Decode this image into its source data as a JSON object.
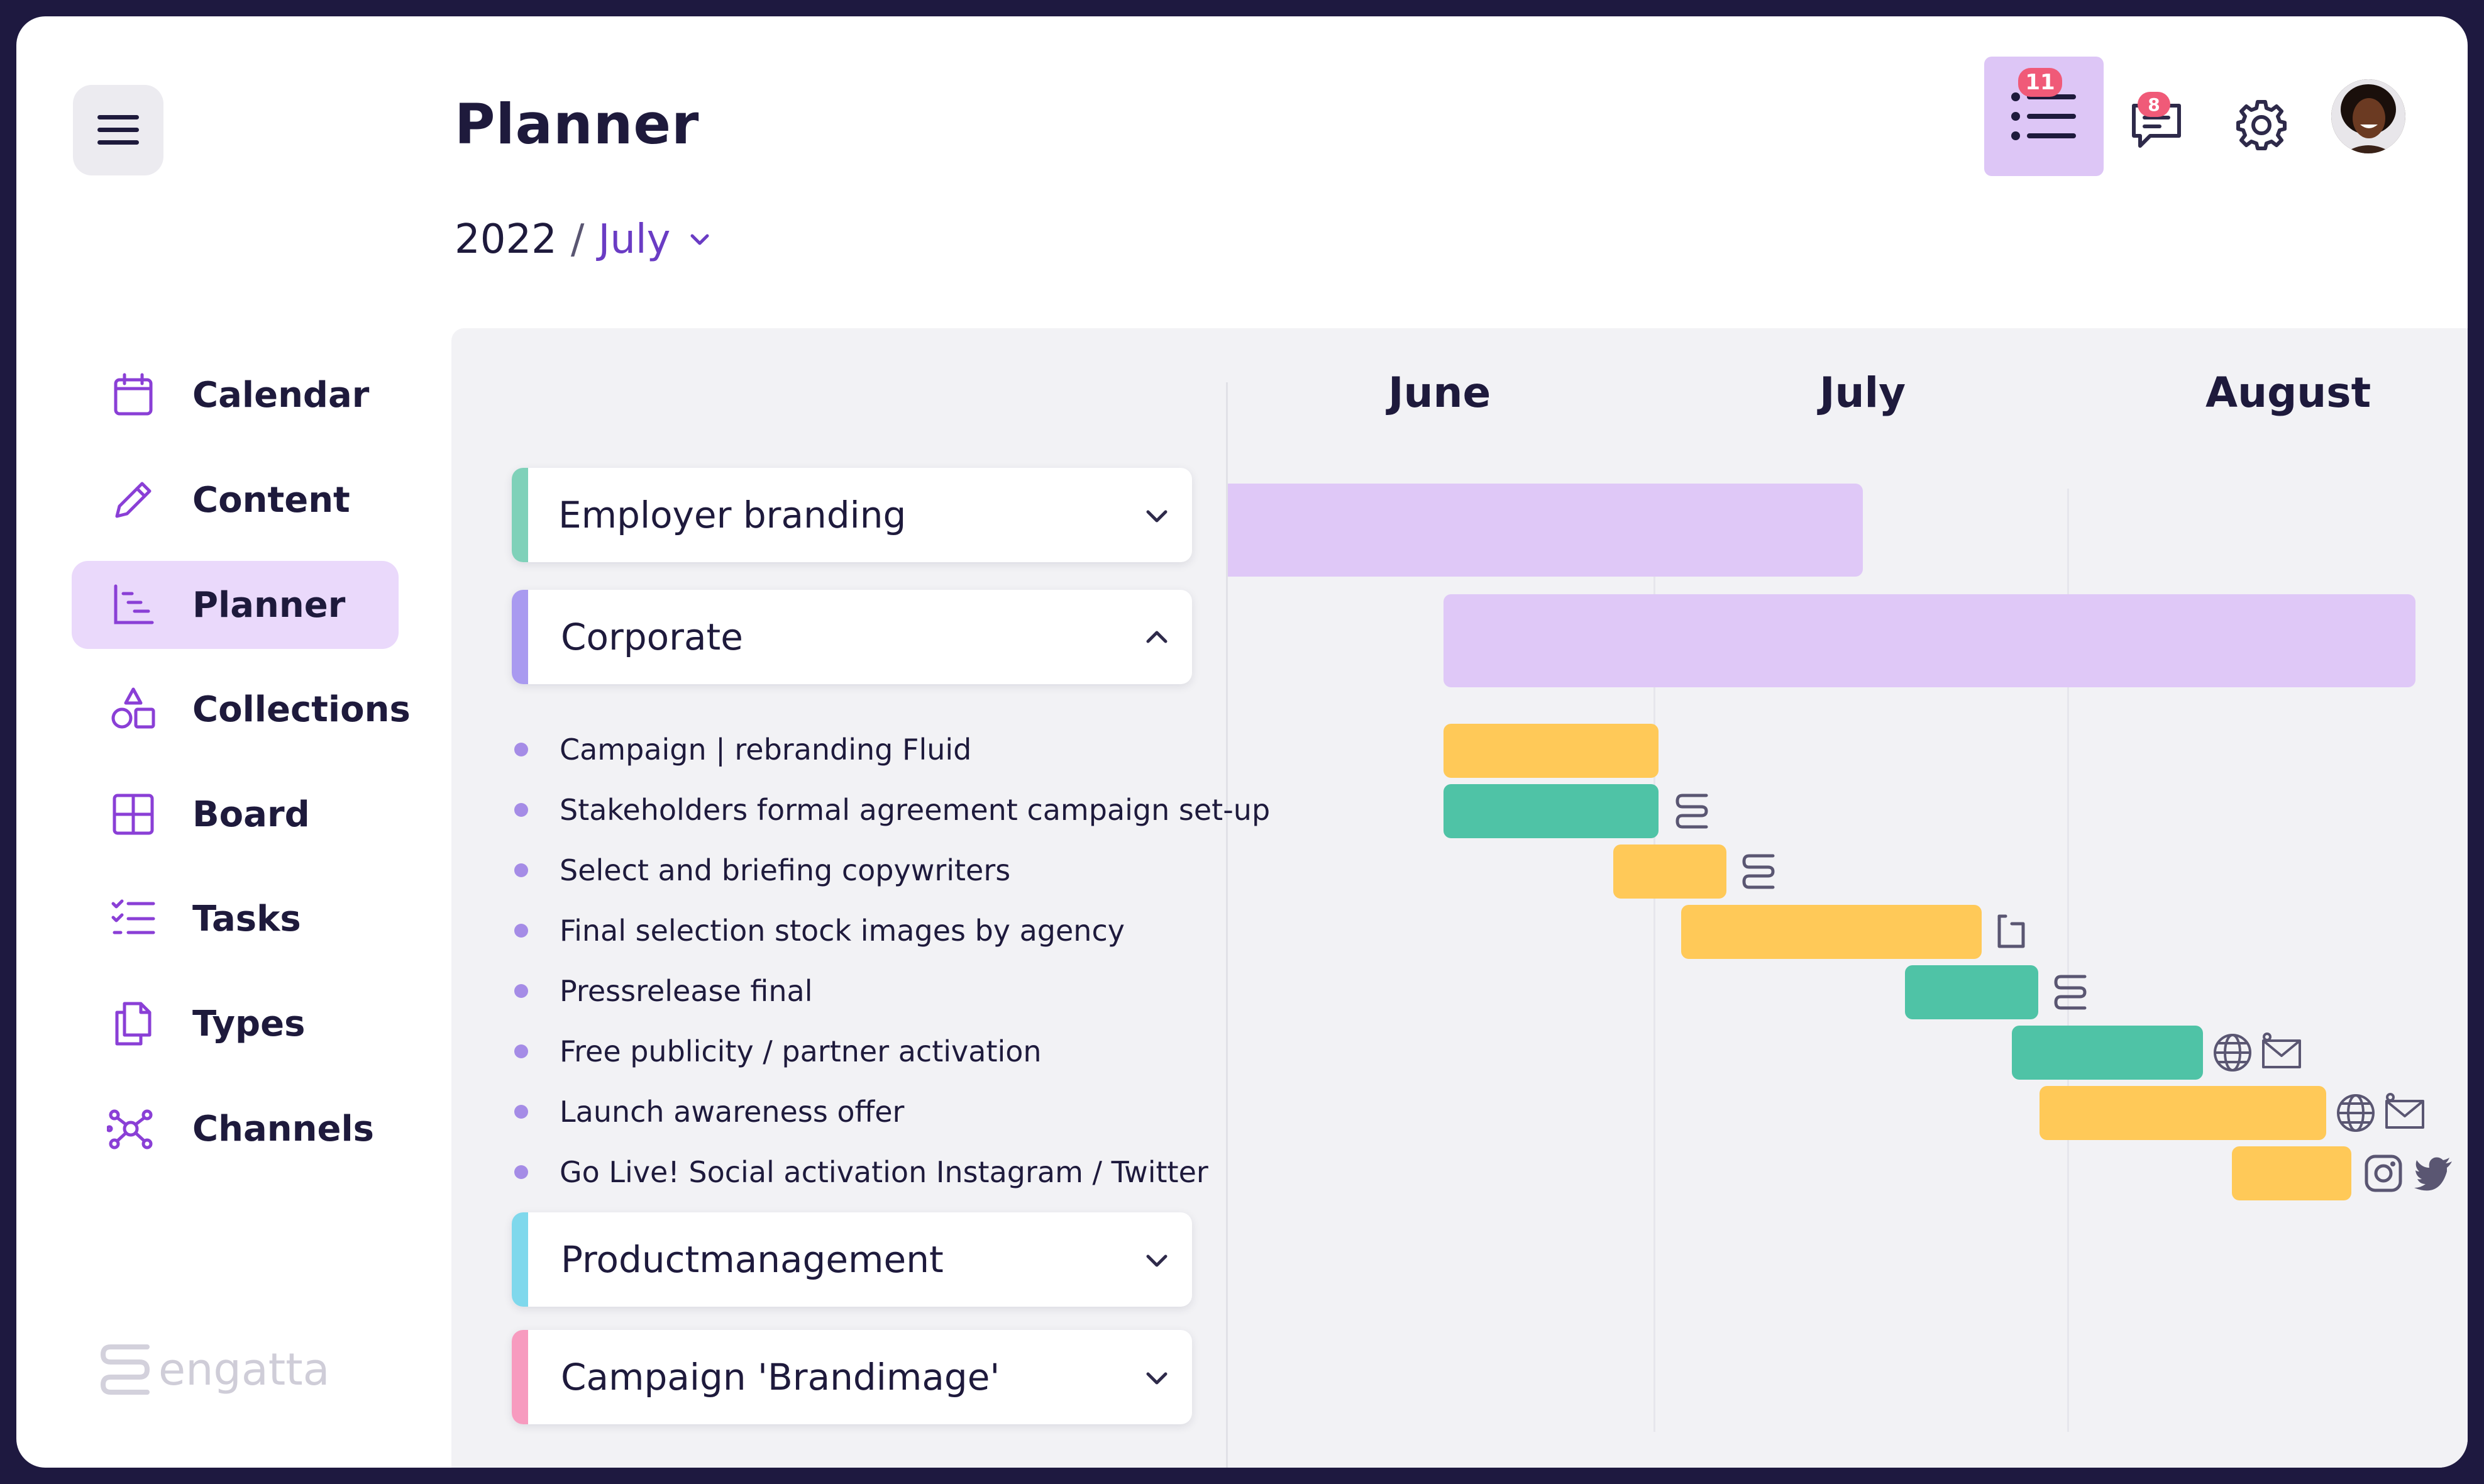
{
  "header": {
    "title": "Planner",
    "year": "2022",
    "separator": "/",
    "month": "July",
    "tasks_badge": "11",
    "messages_badge": "8"
  },
  "sidebar": {
    "items": [
      {
        "label": "Calendar",
        "icon": "calendar-icon"
      },
      {
        "label": "Content",
        "icon": "pencil-icon"
      },
      {
        "label": "Planner",
        "icon": "planner-icon",
        "active": true
      },
      {
        "label": "Collections",
        "icon": "shapes-icon"
      },
      {
        "label": "Board",
        "icon": "board-icon"
      },
      {
        "label": "Tasks",
        "icon": "checklist-icon"
      },
      {
        "label": "Types",
        "icon": "documents-icon"
      },
      {
        "label": "Channels",
        "icon": "network-icon"
      }
    ],
    "logo_text": "engatta"
  },
  "timeline": {
    "months": [
      "June",
      "July",
      "August"
    ],
    "groups": [
      {
        "name": "Employer branding",
        "color": "#7fd1b9",
        "expanded": false
      },
      {
        "name": "Corporate",
        "color": "#a99af0",
        "expanded": true
      },
      {
        "name": "Productmanagement",
        "color": "#7fd8ec",
        "expanded": false
      },
      {
        "name": "Campaign 'Brandimage'",
        "color": "#f79bbf",
        "expanded": false
      }
    ],
    "tasks": [
      {
        "name": "Campaign | rebranding Fluid",
        "color": "#ffc958"
      },
      {
        "name": "Stakeholders formal agreement campaign set-up",
        "color": "#4fc3a6",
        "icons": [
          "engatta-icon"
        ]
      },
      {
        "name": "Select and briefing copywriters",
        "color": "#ffc958",
        "icons": [
          "engatta-icon"
        ]
      },
      {
        "name": "Final selection stock images by agency",
        "color": "#ffc958",
        "icons": [
          "resize-icon"
        ]
      },
      {
        "name": "Pressrelease final",
        "color": "#4fc3a6",
        "icons": [
          "engatta-icon"
        ]
      },
      {
        "name": "Free publicity / partner activation",
        "color": "#4fc3a6",
        "icons": [
          "www-globe-icon",
          "email-icon"
        ]
      },
      {
        "name": "Launch awareness offer",
        "color": "#ffc958",
        "icons": [
          "www-globe-icon",
          "email-icon"
        ]
      },
      {
        "name": "Go Live! Social activation Instagram / Twitter",
        "color": "#ffc958",
        "icons": [
          "instagram-icon",
          "twitter-icon"
        ]
      }
    ],
    "colors": {
      "purple_bar": "#dfc8f7",
      "yellow": "#ffc958",
      "green": "#4fc3a6",
      "accent": "#6a3cc4"
    }
  }
}
